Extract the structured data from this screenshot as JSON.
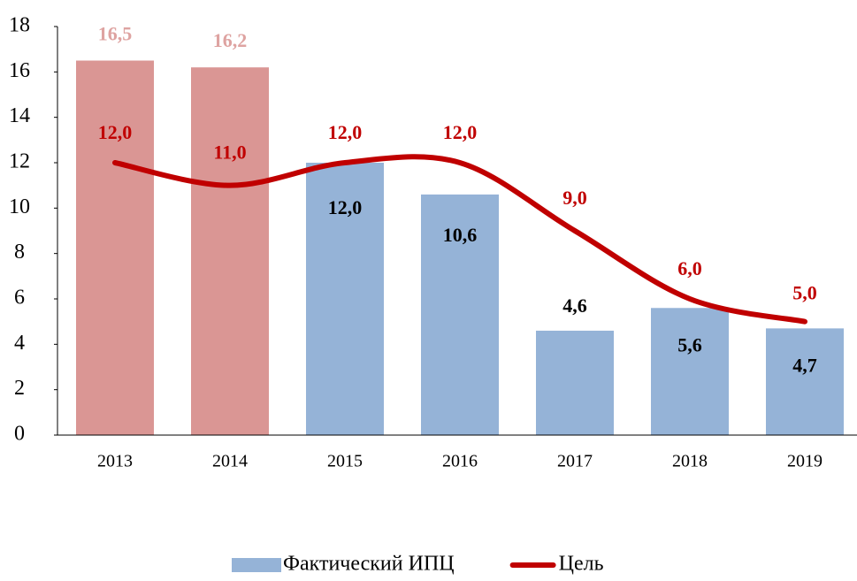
{
  "chart_data": {
    "type": "bar",
    "categories": [
      "2013",
      "2014",
      "2015",
      "2016",
      "2017",
      "2018",
      "2019"
    ],
    "ylim": [
      0,
      18
    ],
    "yticks": [
      0,
      2,
      4,
      6,
      8,
      10,
      12,
      14,
      16,
      18
    ],
    "legend": "bottom",
    "series": [
      {
        "name": "Фактический ИПЦ",
        "type": "bar",
        "color": "#95b3d7",
        "colors": [
          "#da9694",
          "#da9694",
          "#95b3d7",
          "#95b3d7",
          "#95b3d7",
          "#95b3d7",
          "#95b3d7"
        ],
        "label_colors": [
          "#dea3a1",
          "#dea3a1",
          "#000000",
          "#000000",
          "#000000",
          "#000000",
          "#000000"
        ],
        "values": [
          16.5,
          16.2,
          12.0,
          10.6,
          4.6,
          5.6,
          4.7
        ],
        "value_labels": [
          "16,5",
          "16,2",
          "12,0",
          "10,6",
          "4,6",
          "5,6",
          "4,7"
        ]
      },
      {
        "name": "Цель",
        "type": "line",
        "color": "#c00000",
        "smooth": true,
        "values": [
          12.0,
          11.0,
          12.0,
          12.0,
          9.0,
          6.0,
          5.0
        ],
        "value_labels": [
          "12,0",
          "11,0",
          "12,0",
          "12,0",
          "9,0",
          "6,0",
          "5,0"
        ]
      }
    ]
  }
}
